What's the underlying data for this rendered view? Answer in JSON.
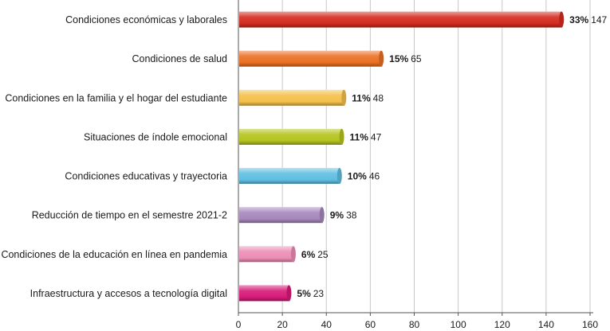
{
  "chart_data": {
    "type": "bar",
    "orientation": "horizontal",
    "categories": [
      "Condiciones económicas y laborales",
      "Condiciones de salud",
      "Condiciones en la familia y el hogar del estudiante",
      "Situaciones de índole emocional",
      "Condiciones educativas y trayectoria",
      "Reducción de tiempo en el semestre 2021-2",
      "Condiciones de la educación en línea en pandemia",
      "Infraestructura y accesos a tecnología digital"
    ],
    "values": [
      147,
      65,
      48,
      47,
      46,
      38,
      25,
      23
    ],
    "percent_labels": [
      "33%",
      "15%",
      "11%",
      "11%",
      "10%",
      "9%",
      "6%",
      "5%"
    ],
    "bar_colors": [
      "#d42a1f",
      "#ea6f22",
      "#f4c04a",
      "#b4c41d",
      "#5fbfe1",
      "#a687bc",
      "#ec8db6",
      "#d71a78"
    ],
    "xlim": [
      0,
      160
    ],
    "xticks": [
      0,
      20,
      40,
      60,
      80,
      100,
      120,
      140,
      160
    ],
    "grid": true,
    "title": "",
    "xlabel": "",
    "ylabel": ""
  }
}
